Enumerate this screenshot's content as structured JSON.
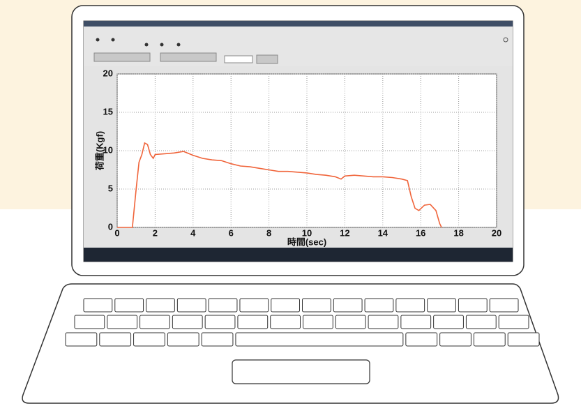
{
  "chart_data": {
    "type": "line",
    "xlabel": "時間(sec)",
    "ylabel": "荷重(Kgf)",
    "x": [
      0,
      0.8,
      1.0,
      1.15,
      1.3,
      1.45,
      1.6,
      1.75,
      1.9,
      2,
      2.5,
      3,
      3.5,
      4,
      4.5,
      5,
      5.5,
      6,
      6.5,
      7,
      7.5,
      8,
      8.5,
      9,
      9.5,
      10,
      10.5,
      11,
      11.5,
      11.8,
      12,
      12.5,
      13,
      13.5,
      14,
      14.5,
      15,
      15.3,
      15.5,
      15.7,
      15.9,
      16.2,
      16.5,
      16.8,
      17,
      17.1
    ],
    "values": [
      0,
      0,
      5,
      8.5,
      9.5,
      11,
      10.8,
      9.5,
      9,
      9.5,
      9.6,
      9.7,
      9.9,
      9.4,
      9,
      8.8,
      8.7,
      8.3,
      8,
      7.9,
      7.7,
      7.5,
      7.3,
      7.3,
      7.2,
      7.1,
      6.9,
      6.8,
      6.6,
      6.3,
      6.7,
      6.8,
      6.7,
      6.6,
      6.6,
      6.5,
      6.3,
      6.1,
      4,
      2.5,
      2.2,
      2.9,
      3,
      2.2,
      0.5,
      0
    ],
    "color": "#f0643a",
    "xlim": [
      0,
      20
    ],
    "xticks": [
      0,
      2,
      4,
      6,
      8,
      10,
      12,
      14,
      16,
      18,
      20
    ],
    "ylim": [
      0,
      20
    ],
    "yticks": [
      0,
      5,
      10,
      15,
      20
    ],
    "grid": true
  }
}
